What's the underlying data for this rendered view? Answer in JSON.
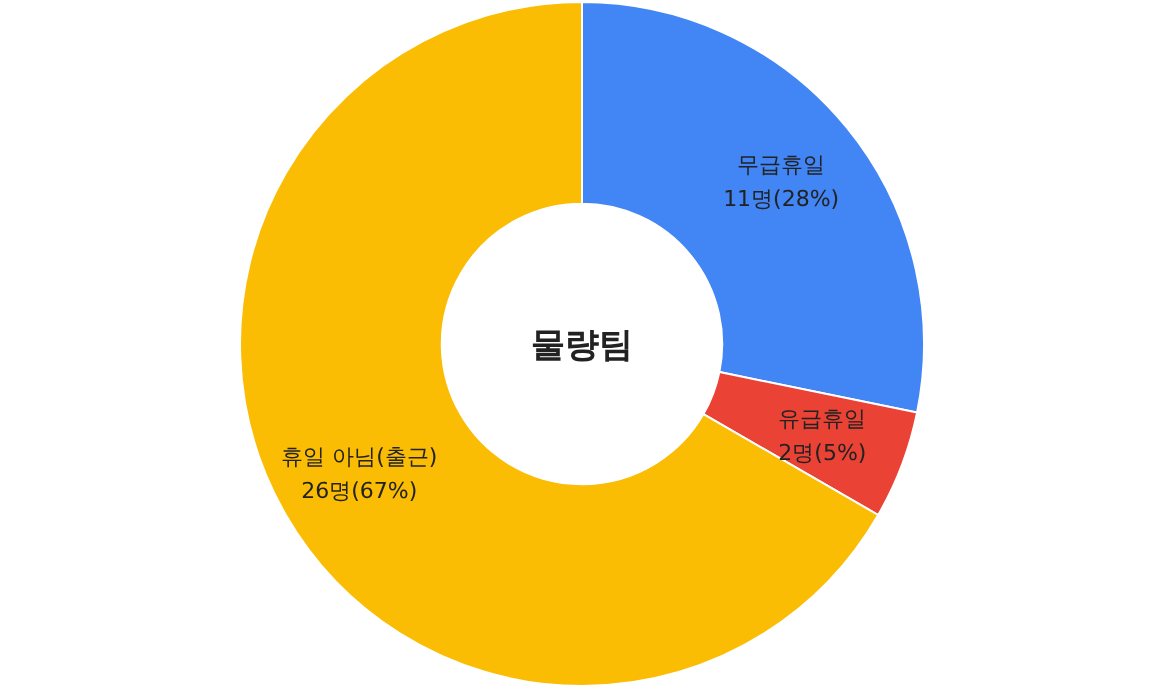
{
  "chart_data": {
    "type": "donut",
    "title": "물량팀",
    "categories": [
      "무급휴일",
      "유급휴일",
      "휴일 아님(출근)"
    ],
    "values": [
      11,
      2,
      26
    ],
    "value_labels": [
      "11명(28%)",
      "2명(5%)",
      "26명(67%)"
    ],
    "colors": [
      "#4285f4",
      "#ea4335",
      "#fbbc04"
    ]
  }
}
